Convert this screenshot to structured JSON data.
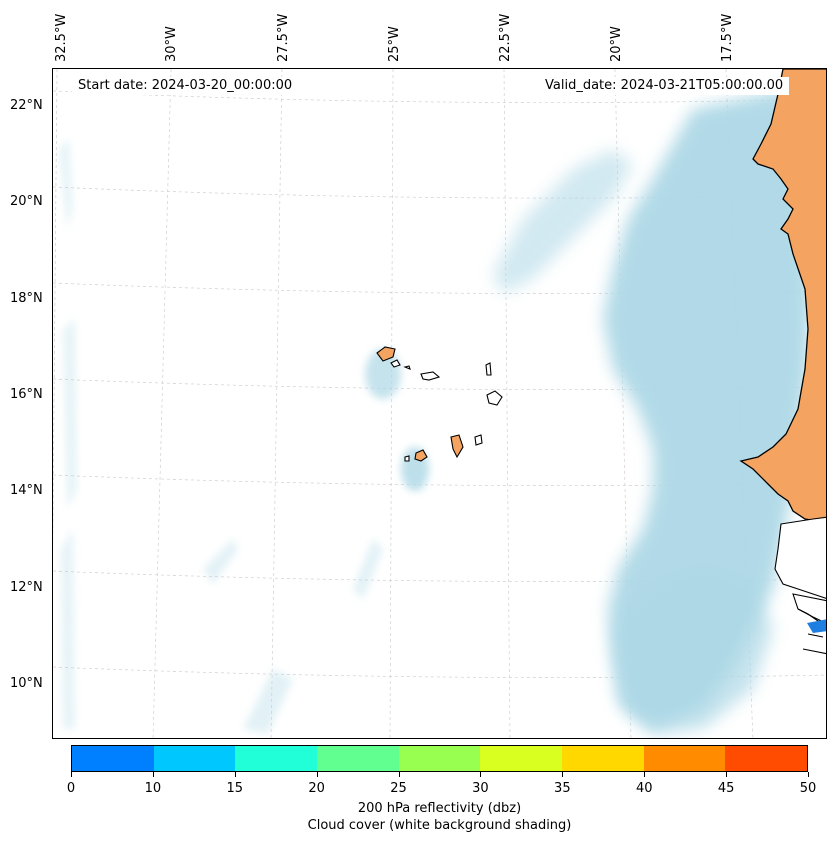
{
  "header": {
    "start_date": "Start date: 2024-03-20_00:00:00",
    "valid_date": "Valid_date: 2024-03-21T05:00:00.00"
  },
  "axes": {
    "longitude_labels": [
      "32.5°W",
      "30°W",
      "27.5°W",
      "25°W",
      "22.5°W",
      "20°W",
      "17.5°W"
    ],
    "latitude_labels": [
      "22°N",
      "20°N",
      "18°N",
      "16°N",
      "14°N",
      "12°N",
      "10°N"
    ]
  },
  "colorbar": {
    "ticks": [
      "0",
      "10",
      "15",
      "20",
      "25",
      "30",
      "35",
      "40",
      "45",
      "50"
    ],
    "colors": [
      "#0080ff",
      "#00c8ff",
      "#20ffd8",
      "#60ff90",
      "#98ff50",
      "#d8ff20",
      "#ffd800",
      "#ff8c00",
      "#ff4c00"
    ],
    "label_line1": "200 hPa reflectivity (dbz)",
    "label_line2": "Cloud cover (white background shading)"
  },
  "colors": {
    "land": "#f4a460",
    "cloud": "#add8e6",
    "coast": "#000000",
    "reflectivity_blob": "#1e7fe0"
  }
}
